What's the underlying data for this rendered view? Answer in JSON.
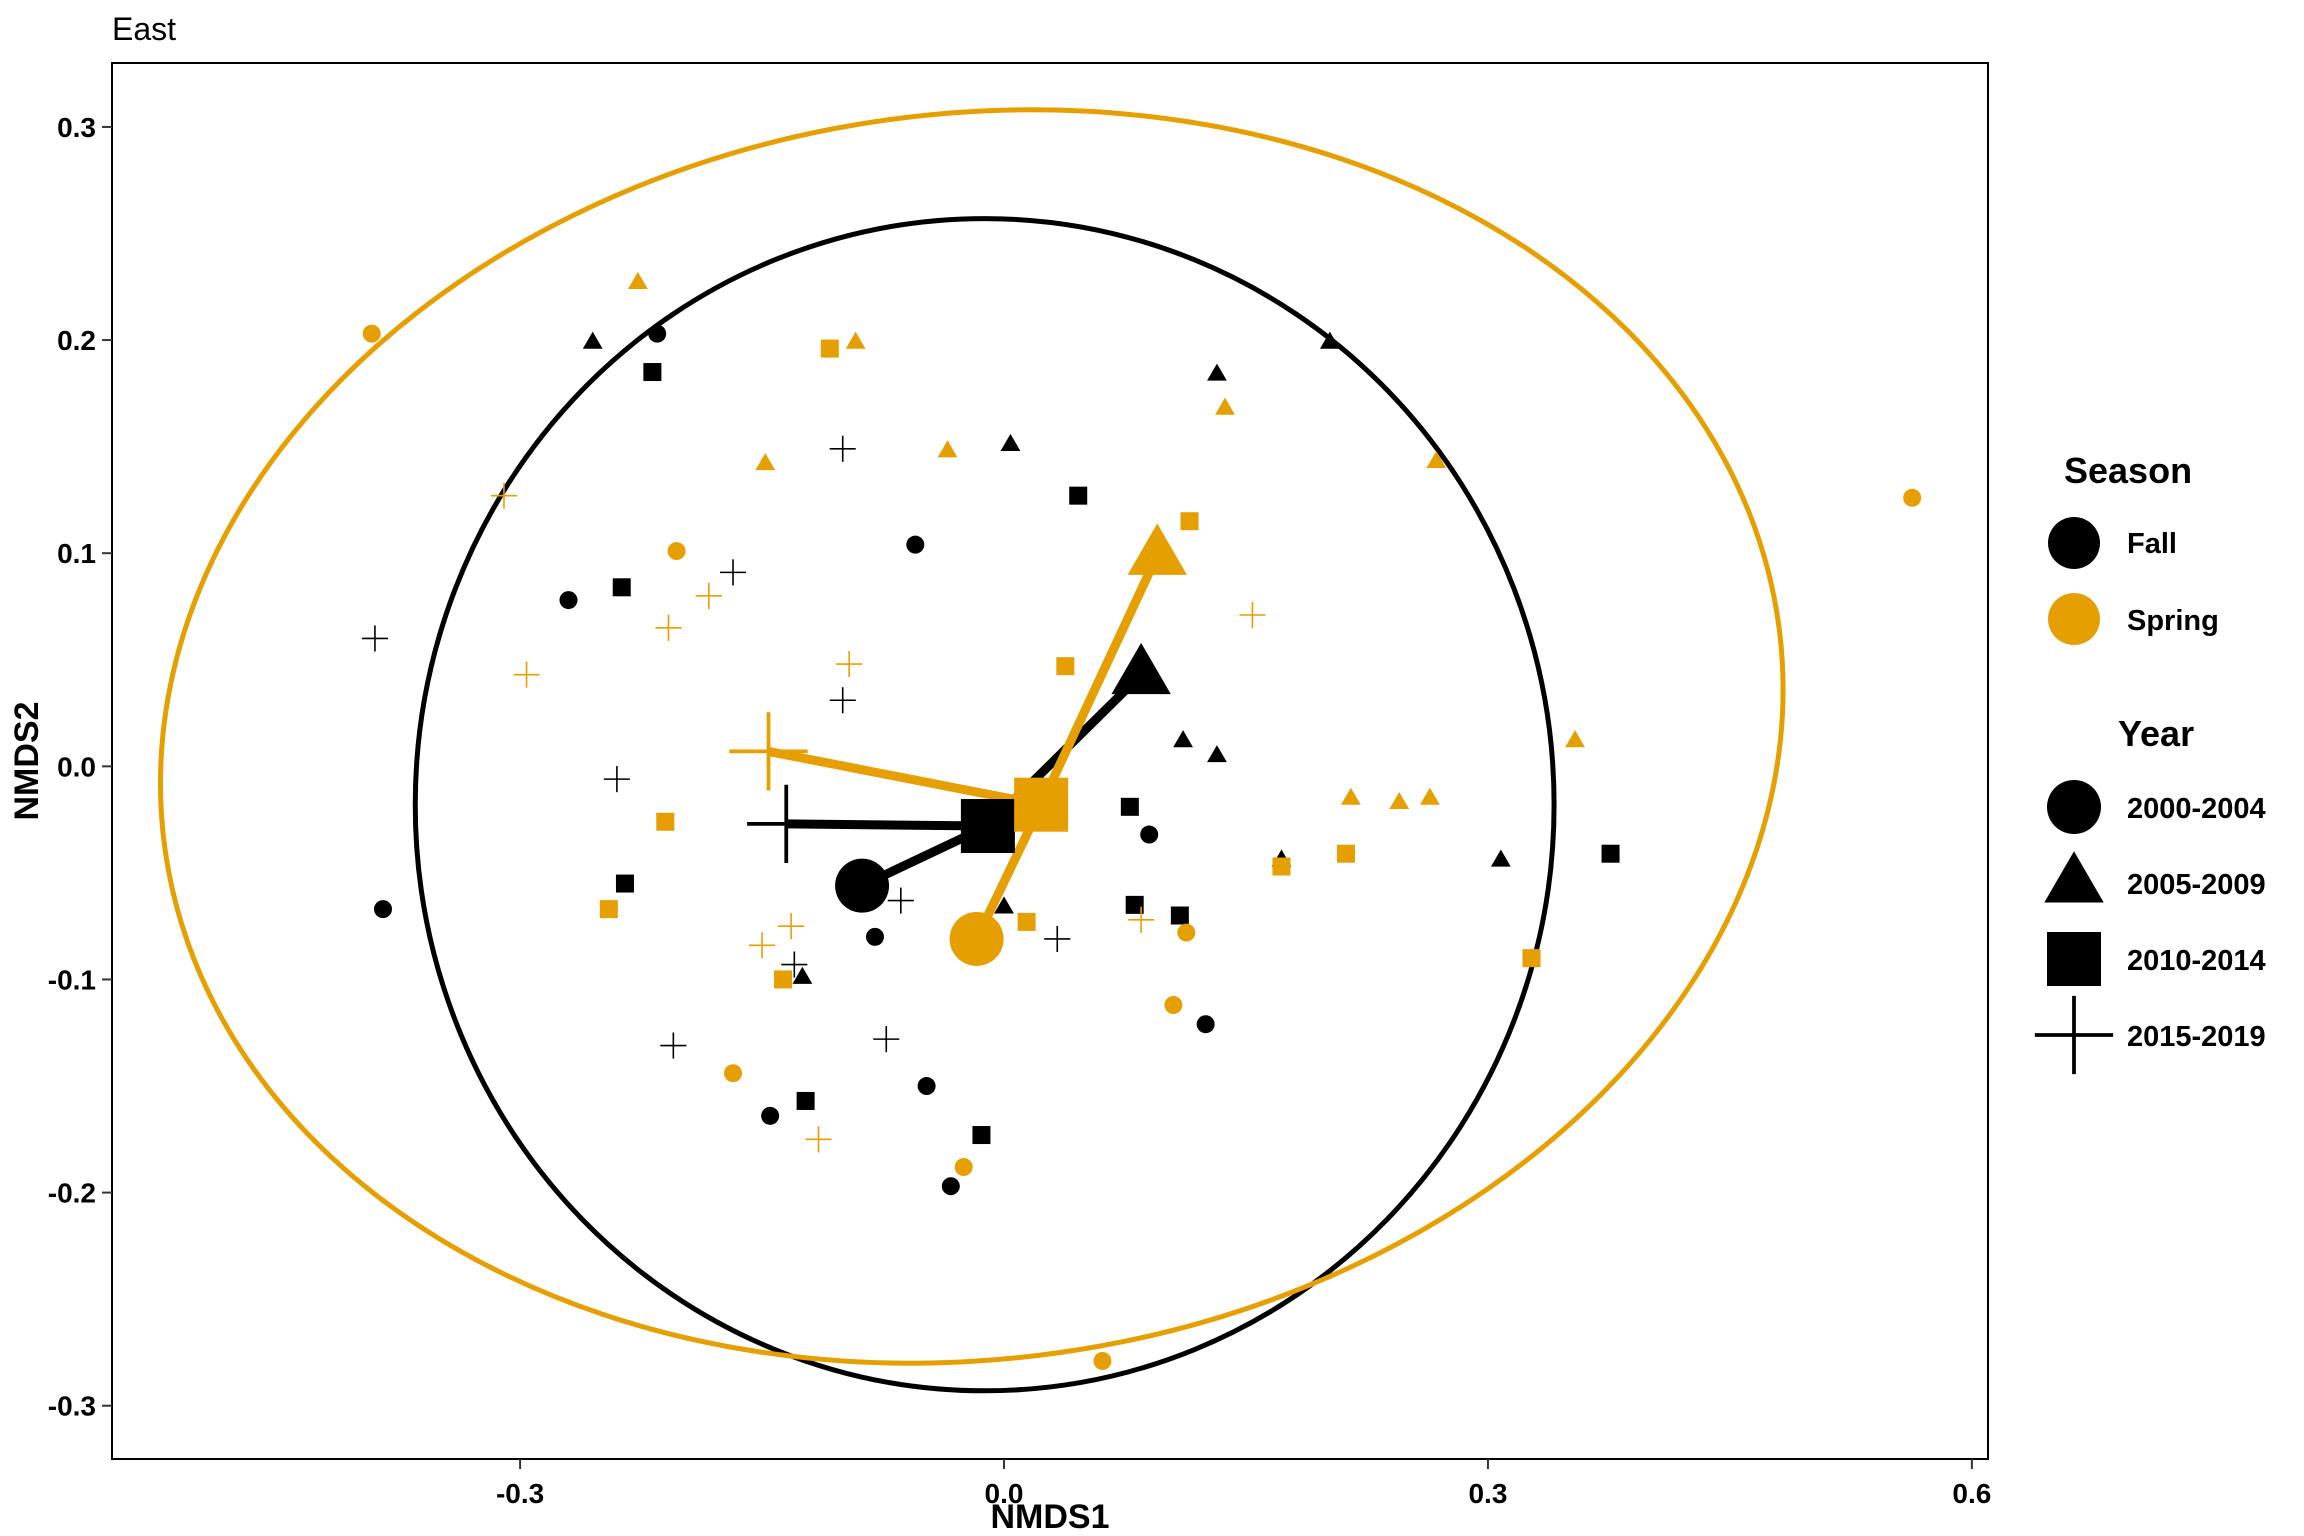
{
  "chart_data": {
    "type": "scatter",
    "title": "East",
    "xlabel": "NMDS1",
    "ylabel": "NMDS2",
    "xlim": [
      -0.553,
      0.61
    ],
    "ylim": [
      -0.325,
      0.33
    ],
    "xticks": [
      -0.3,
      0.0,
      0.3,
      0.6
    ],
    "xtick_labels": [
      "-0.3",
      "0.0",
      "0.3",
      "0.6"
    ],
    "yticks": [
      -0.3,
      -0.2,
      -0.1,
      0.0,
      0.1,
      0.2,
      0.3
    ],
    "ytick_labels": [
      "-0.3",
      "-0.2",
      "-0.1",
      "0.0",
      "0.1",
      "0.2",
      "0.3"
    ],
    "grid": false,
    "legend_position": "right",
    "colors": {
      "Fall": "#000000",
      "Spring": "#E69F00"
    },
    "legend": {
      "season_title": "Season",
      "season_items": [
        {
          "label": "Fall",
          "color": "#000000"
        },
        {
          "label": "Spring",
          "color": "#E69F00"
        }
      ],
      "year_title": "Year",
      "year_items": [
        {
          "label": "2000-2004",
          "shape": "circle"
        },
        {
          "label": "2005-2009",
          "shape": "triangle"
        },
        {
          "label": "2010-2014",
          "shape": "square"
        },
        {
          "label": "2015-2019",
          "shape": "plus"
        }
      ]
    },
    "points": [
      {
        "x": -0.215,
        "y": 0.203,
        "season": "Fall",
        "year": "2000-2004"
      },
      {
        "x": -0.27,
        "y": 0.078,
        "season": "Fall",
        "year": "2000-2004"
      },
      {
        "x": -0.385,
        "y": -0.067,
        "season": "Fall",
        "year": "2000-2004"
      },
      {
        "x": -0.055,
        "y": 0.104,
        "season": "Fall",
        "year": "2000-2004"
      },
      {
        "x": -0.08,
        "y": -0.08,
        "season": "Fall",
        "year": "2000-2004"
      },
      {
        "x": 0.09,
        "y": -0.032,
        "season": "Fall",
        "year": "2000-2004"
      },
      {
        "x": -0.048,
        "y": -0.15,
        "season": "Fall",
        "year": "2000-2004"
      },
      {
        "x": -0.145,
        "y": -0.164,
        "season": "Fall",
        "year": "2000-2004"
      },
      {
        "x": 0.125,
        "y": -0.121,
        "season": "Fall",
        "year": "2000-2004"
      },
      {
        "x": -0.033,
        "y": -0.197,
        "season": "Fall",
        "year": "2000-2004"
      },
      {
        "x": -0.255,
        "y": 0.199,
        "season": "Fall",
        "year": "2005-2009"
      },
      {
        "x": 0.004,
        "y": 0.151,
        "season": "Fall",
        "year": "2005-2009"
      },
      {
        "x": 0.132,
        "y": 0.184,
        "season": "Fall",
        "year": "2005-2009"
      },
      {
        "x": 0.202,
        "y": 0.199,
        "season": "Fall",
        "year": "2005-2009"
      },
      {
        "x": 0.111,
        "y": 0.012,
        "season": "Fall",
        "year": "2005-2009"
      },
      {
        "x": 0.132,
        "y": 0.005,
        "season": "Fall",
        "year": "2005-2009"
      },
      {
        "x": 0.172,
        "y": -0.044,
        "season": "Fall",
        "year": "2005-2009"
      },
      {
        "x": 0.308,
        "y": -0.044,
        "season": "Fall",
        "year": "2005-2009"
      },
      {
        "x": -0.125,
        "y": -0.099,
        "season": "Fall",
        "year": "2005-2009"
      },
      {
        "x": 0.0,
        "y": -0.066,
        "season": "Fall",
        "year": "2005-2009"
      },
      {
        "x": -0.218,
        "y": 0.185,
        "season": "Fall",
        "year": "2010-2014"
      },
      {
        "x": 0.046,
        "y": 0.127,
        "season": "Fall",
        "year": "2010-2014"
      },
      {
        "x": -0.237,
        "y": 0.084,
        "season": "Fall",
        "year": "2010-2014"
      },
      {
        "x": 0.078,
        "y": -0.019,
        "season": "Fall",
        "year": "2010-2014"
      },
      {
        "x": 0.376,
        "y": -0.041,
        "season": "Fall",
        "year": "2010-2014"
      },
      {
        "x": -0.235,
        "y": -0.055,
        "season": "Fall",
        "year": "2010-2014"
      },
      {
        "x": 0.081,
        "y": -0.065,
        "season": "Fall",
        "year": "2010-2014"
      },
      {
        "x": 0.109,
        "y": -0.07,
        "season": "Fall",
        "year": "2010-2014"
      },
      {
        "x": -0.123,
        "y": -0.157,
        "season": "Fall",
        "year": "2010-2014"
      },
      {
        "x": -0.014,
        "y": -0.173,
        "season": "Fall",
        "year": "2010-2014"
      },
      {
        "x": -0.1,
        "y": 0.149,
        "season": "Fall",
        "year": "2015-2019"
      },
      {
        "x": -0.168,
        "y": 0.091,
        "season": "Fall",
        "year": "2015-2019"
      },
      {
        "x": -0.39,
        "y": 0.06,
        "season": "Fall",
        "year": "2015-2019"
      },
      {
        "x": -0.1,
        "y": 0.031,
        "season": "Fall",
        "year": "2015-2019"
      },
      {
        "x": -0.24,
        "y": -0.006,
        "season": "Fall",
        "year": "2015-2019"
      },
      {
        "x": -0.064,
        "y": -0.063,
        "season": "Fall",
        "year": "2015-2019"
      },
      {
        "x": 0.033,
        "y": -0.081,
        "season": "Fall",
        "year": "2015-2019"
      },
      {
        "x": -0.13,
        "y": -0.093,
        "season": "Fall",
        "year": "2015-2019"
      },
      {
        "x": -0.205,
        "y": -0.131,
        "season": "Fall",
        "year": "2015-2019"
      },
      {
        "x": -0.073,
        "y": -0.128,
        "season": "Fall",
        "year": "2015-2019"
      },
      {
        "x": -0.392,
        "y": 0.203,
        "season": "Spring",
        "year": "2000-2004"
      },
      {
        "x": -0.203,
        "y": 0.101,
        "season": "Spring",
        "year": "2000-2004"
      },
      {
        "x": 0.563,
        "y": 0.126,
        "season": "Spring",
        "year": "2000-2004"
      },
      {
        "x": 0.113,
        "y": -0.078,
        "season": "Spring",
        "year": "2000-2004"
      },
      {
        "x": 0.105,
        "y": -0.112,
        "season": "Spring",
        "year": "2000-2004"
      },
      {
        "x": -0.168,
        "y": -0.144,
        "season": "Spring",
        "year": "2000-2004"
      },
      {
        "x": -0.025,
        "y": -0.188,
        "season": "Spring",
        "year": "2000-2004"
      },
      {
        "x": 0.061,
        "y": -0.279,
        "season": "Spring",
        "year": "2000-2004"
      },
      {
        "x": -0.227,
        "y": 0.227,
        "season": "Spring",
        "year": "2005-2009"
      },
      {
        "x": -0.092,
        "y": 0.199,
        "season": "Spring",
        "year": "2005-2009"
      },
      {
        "x": -0.148,
        "y": 0.142,
        "season": "Spring",
        "year": "2005-2009"
      },
      {
        "x": -0.035,
        "y": 0.148,
        "season": "Spring",
        "year": "2005-2009"
      },
      {
        "x": 0.137,
        "y": 0.168,
        "season": "Spring",
        "year": "2005-2009"
      },
      {
        "x": 0.268,
        "y": 0.143,
        "season": "Spring",
        "year": "2005-2009"
      },
      {
        "x": 0.354,
        "y": 0.012,
        "season": "Spring",
        "year": "2005-2009"
      },
      {
        "x": 0.215,
        "y": -0.015,
        "season": "Spring",
        "year": "2005-2009"
      },
      {
        "x": 0.245,
        "y": -0.017,
        "season": "Spring",
        "year": "2005-2009"
      },
      {
        "x": 0.264,
        "y": -0.015,
        "season": "Spring",
        "year": "2005-2009"
      },
      {
        "x": -0.108,
        "y": 0.196,
        "season": "Spring",
        "year": "2010-2014"
      },
      {
        "x": 0.115,
        "y": 0.115,
        "season": "Spring",
        "year": "2010-2014"
      },
      {
        "x": 0.038,
        "y": 0.047,
        "season": "Spring",
        "year": "2010-2014"
      },
      {
        "x": -0.21,
        "y": -0.026,
        "season": "Spring",
        "year": "2010-2014"
      },
      {
        "x": 0.172,
        "y": -0.047,
        "season": "Spring",
        "year": "2010-2014"
      },
      {
        "x": 0.212,
        "y": -0.041,
        "season": "Spring",
        "year": "2010-2014"
      },
      {
        "x": -0.245,
        "y": -0.067,
        "season": "Spring",
        "year": "2010-2014"
      },
      {
        "x": 0.014,
        "y": -0.073,
        "season": "Spring",
        "year": "2010-2014"
      },
      {
        "x": 0.327,
        "y": -0.09,
        "season": "Spring",
        "year": "2010-2014"
      },
      {
        "x": -0.137,
        "y": -0.1,
        "season": "Spring",
        "year": "2010-2014"
      },
      {
        "x": -0.31,
        "y": 0.127,
        "season": "Spring",
        "year": "2015-2019"
      },
      {
        "x": 0.154,
        "y": 0.071,
        "season": "Spring",
        "year": "2015-2019"
      },
      {
        "x": -0.183,
        "y": 0.08,
        "season": "Spring",
        "year": "2015-2019"
      },
      {
        "x": -0.208,
        "y": 0.065,
        "season": "Spring",
        "year": "2015-2019"
      },
      {
        "x": -0.096,
        "y": 0.048,
        "season": "Spring",
        "year": "2015-2019"
      },
      {
        "x": -0.296,
        "y": 0.043,
        "season": "Spring",
        "year": "2015-2019"
      },
      {
        "x": -0.132,
        "y": -0.075,
        "season": "Spring",
        "year": "2015-2019"
      },
      {
        "x": -0.15,
        "y": -0.084,
        "season": "Spring",
        "year": "2015-2019"
      },
      {
        "x": 0.085,
        "y": -0.072,
        "season": "Spring",
        "year": "2015-2019"
      },
      {
        "x": -0.115,
        "y": -0.175,
        "season": "Spring",
        "year": "2015-2019"
      }
    ],
    "centroids": [
      {
        "season": "Fall",
        "year": "all",
        "x": -0.01,
        "y": -0.028
      },
      {
        "season": "Fall",
        "year": "2000-2004",
        "x": -0.088,
        "y": -0.056
      },
      {
        "season": "Fall",
        "year": "2005-2009",
        "x": 0.085,
        "y": 0.043
      },
      {
        "season": "Fall",
        "year": "2010-2014",
        "x": -0.01,
        "y": -0.028
      },
      {
        "season": "Fall",
        "year": "2015-2019",
        "x": -0.135,
        "y": -0.027
      },
      {
        "season": "Spring",
        "year": "all",
        "x": 0.023,
        "y": -0.018
      },
      {
        "season": "Spring",
        "year": "2000-2004",
        "x": -0.017,
        "y": -0.081
      },
      {
        "season": "Spring",
        "year": "2005-2009",
        "x": 0.095,
        "y": 0.099
      },
      {
        "season": "Spring",
        "year": "2010-2014",
        "x": 0.023,
        "y": -0.018
      },
      {
        "season": "Spring",
        "year": "2015-2019",
        "x": -0.146,
        "y": 0.007
      }
    ],
    "ellipses": [
      {
        "season": "Fall",
        "cx": -0.012,
        "cy": -0.018,
        "rx": 0.353,
        "ry": 0.275,
        "angle_deg": 0
      },
      {
        "season": "Spring",
        "cx": -0.02,
        "cy": 0.014,
        "rx": 0.505,
        "ry": 0.292,
        "angle_deg": -8
      }
    ]
  }
}
